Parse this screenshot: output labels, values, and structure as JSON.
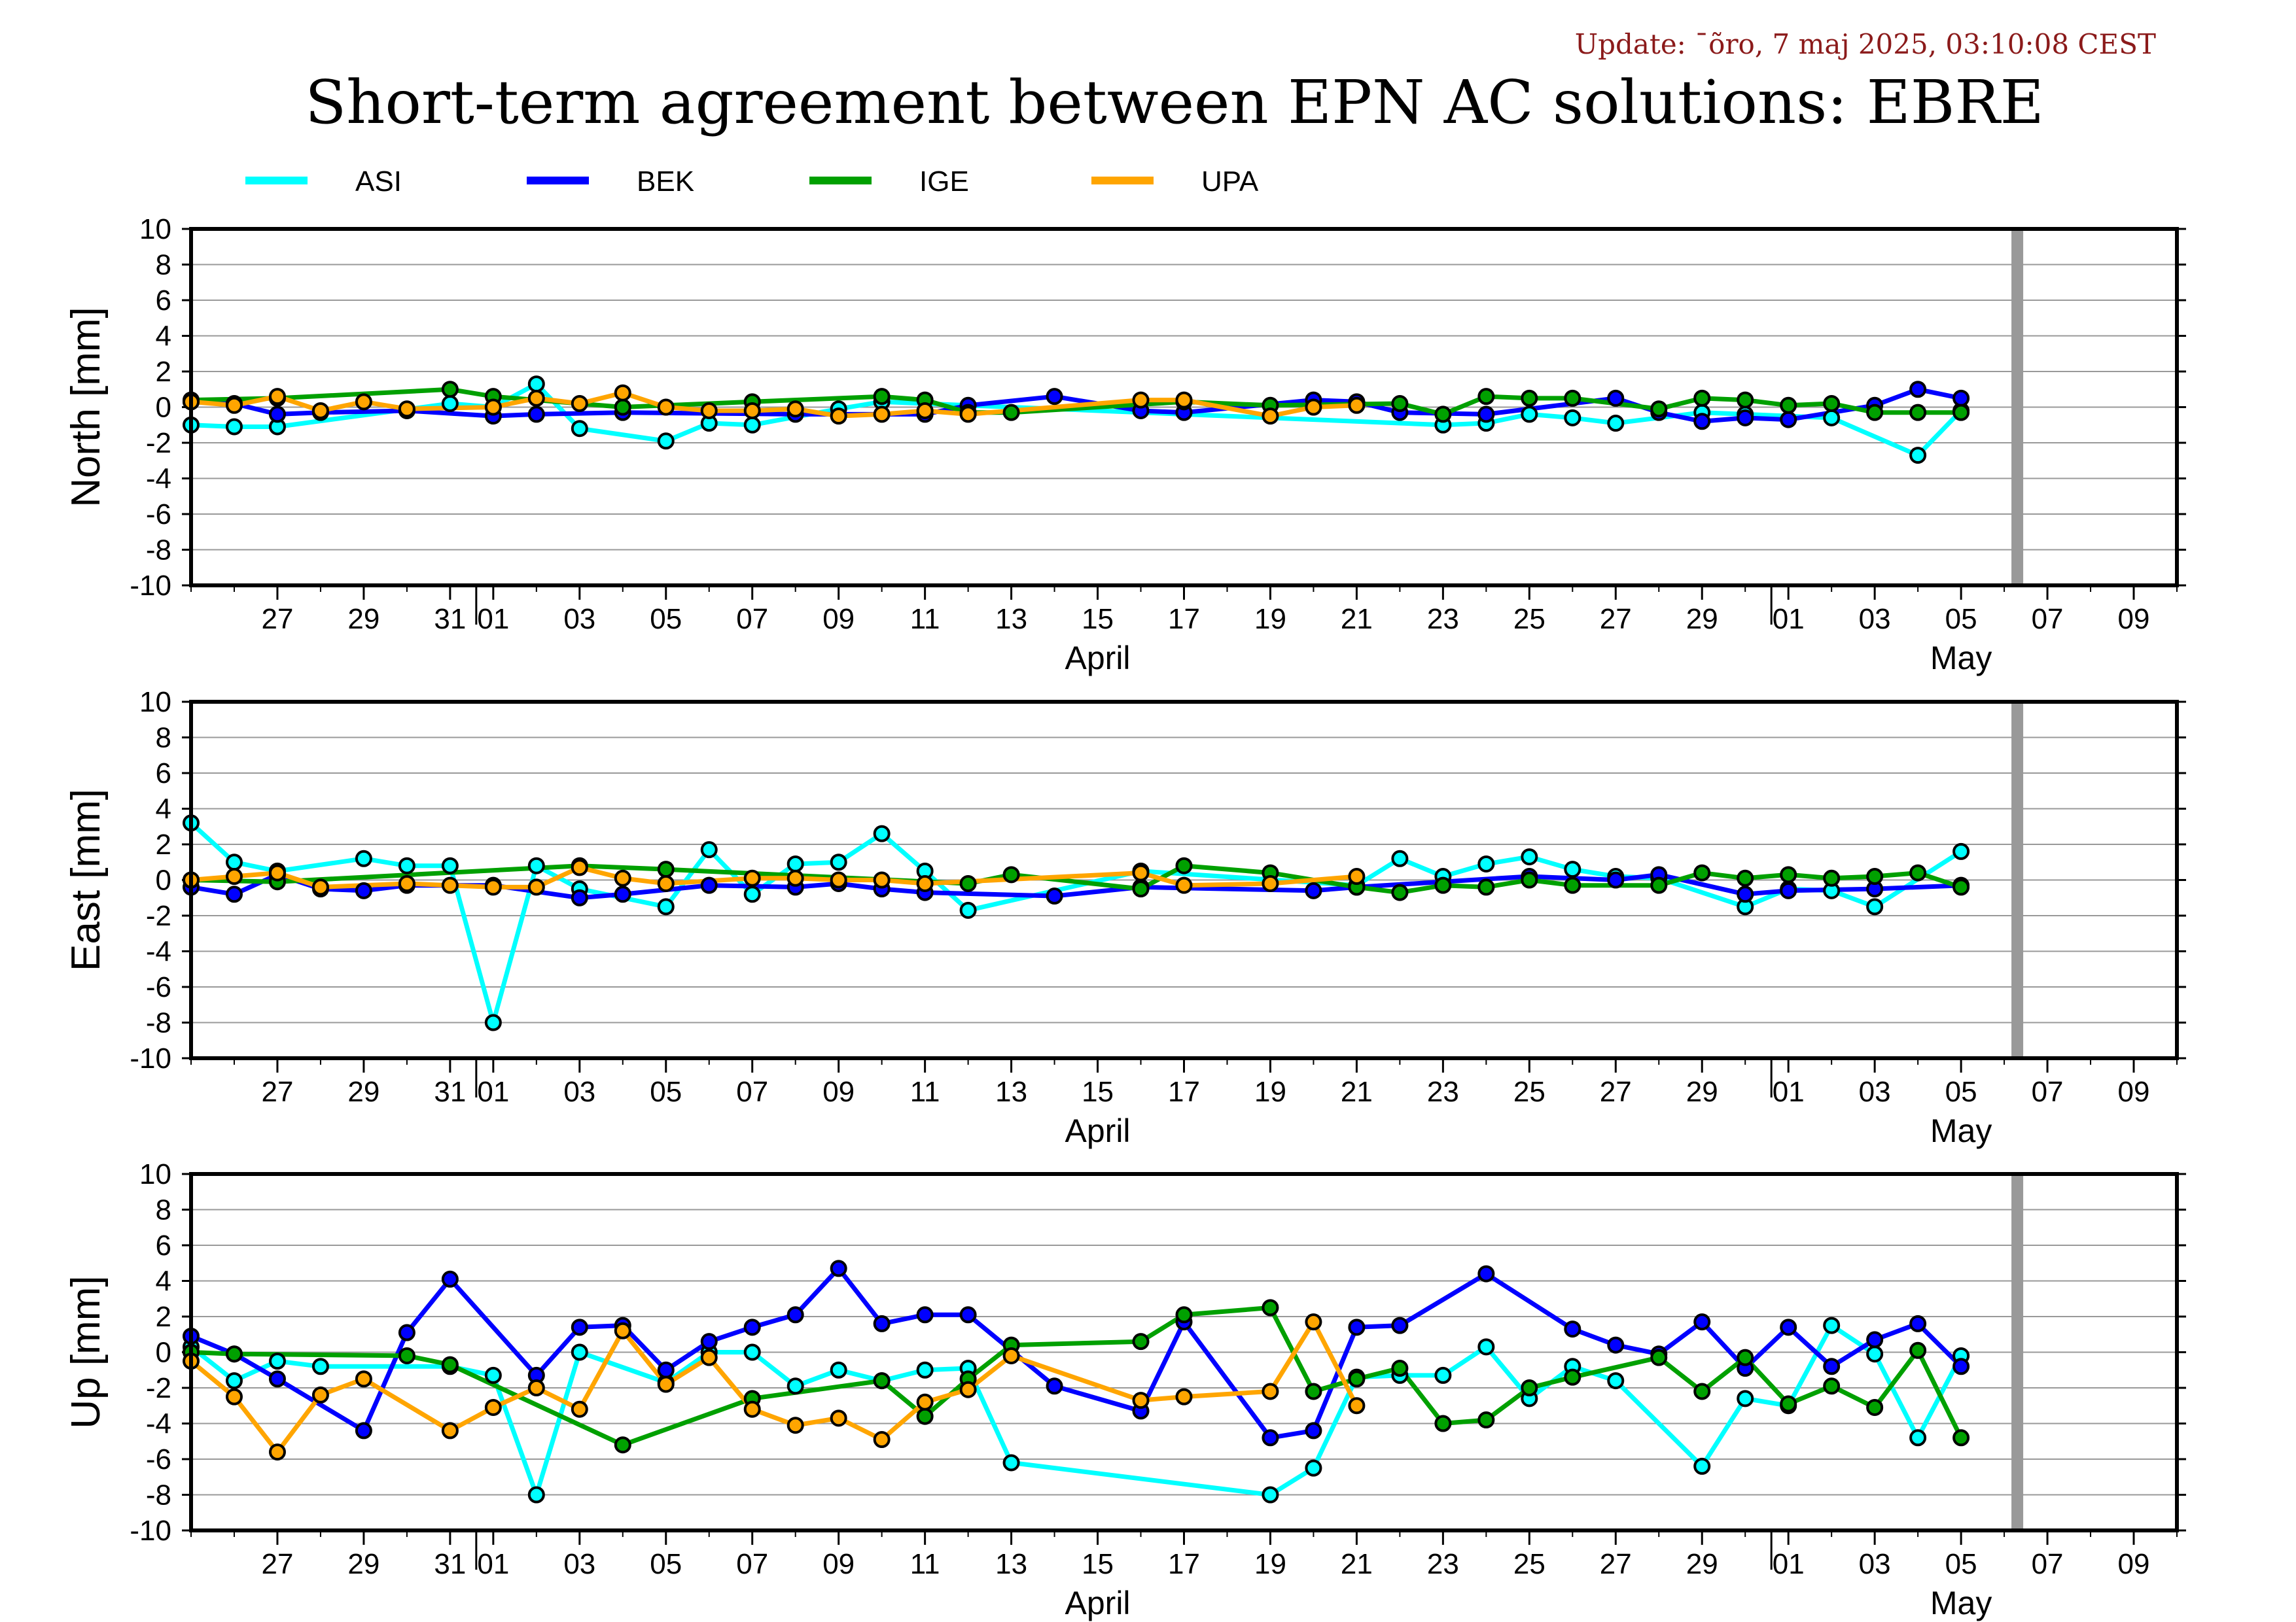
{
  "header": {
    "update": "Update: ˉõro, 7 maj 2025, 03:10:08 CEST",
    "title": "Short-term agreement between EPN AC solutions: EBRE"
  },
  "chart_data": {
    "type": "line",
    "legend": [
      {
        "name": "ASI",
        "color": "#00ffff"
      },
      {
        "name": "BEK",
        "color": "#0000ff"
      },
      {
        "name": "IGE",
        "color": "#00a000"
      },
      {
        "name": "UPA",
        "color": "#ffa500"
      }
    ],
    "x_range": [
      "2025-03-25",
      "2025-05-10"
    ],
    "x_ticks": [
      {
        "date": "2025-03-27",
        "label": "27"
      },
      {
        "date": "2025-03-29",
        "label": "29"
      },
      {
        "date": "2025-03-31",
        "label": "31"
      },
      {
        "date": "2025-04-01",
        "label": "01"
      },
      {
        "date": "2025-04-03",
        "label": "03"
      },
      {
        "date": "2025-04-05",
        "label": "05"
      },
      {
        "date": "2025-04-07",
        "label": "07"
      },
      {
        "date": "2025-04-09",
        "label": "09"
      },
      {
        "date": "2025-04-11",
        "label": "11"
      },
      {
        "date": "2025-04-13",
        "label": "13"
      },
      {
        "date": "2025-04-15",
        "label": "15"
      },
      {
        "date": "2025-04-17",
        "label": "17"
      },
      {
        "date": "2025-04-19",
        "label": "19"
      },
      {
        "date": "2025-04-21",
        "label": "21"
      },
      {
        "date": "2025-04-23",
        "label": "23"
      },
      {
        "date": "2025-04-25",
        "label": "25"
      },
      {
        "date": "2025-04-27",
        "label": "27"
      },
      {
        "date": "2025-04-29",
        "label": "29"
      },
      {
        "date": "2025-05-01",
        "label": "01"
      },
      {
        "date": "2025-05-03",
        "label": "03"
      },
      {
        "date": "2025-05-05",
        "label": "05"
      },
      {
        "date": "2025-05-07",
        "label": "07"
      },
      {
        "date": "2025-05-09",
        "label": "09"
      }
    ],
    "month_labels": [
      {
        "date": "2025-04-15",
        "label": "April"
      },
      {
        "date": "2025-05-05",
        "label": "May"
      }
    ],
    "month_boundaries": [
      "2025-04-01",
      "2025-05-01"
    ],
    "current_marker": "2025-05-06",
    "y_ticks": [
      10,
      8,
      6,
      4,
      2,
      0,
      -2,
      -4,
      -6,
      -8,
      -10
    ],
    "grid": true,
    "panels": [
      {
        "ylabel": "North [mm]",
        "ylim": [
          -10,
          10
        ],
        "series": [
          {
            "name": "ASI",
            "x": [
              "2025-03-25",
              "2025-03-26",
              "2025-03-27",
              "2025-03-31",
              "2025-04-01",
              "2025-04-02",
              "2025-04-03",
              "2025-04-05",
              "2025-04-06",
              "2025-04-07",
              "2025-04-09",
              "2025-04-10",
              "2025-04-23",
              "2025-04-24",
              "2025-04-25",
              "2025-04-26",
              "2025-04-27",
              "2025-04-29",
              "2025-04-30",
              "2025-05-02",
              "2025-05-04",
              "2025-05-05"
            ],
            "y": [
              -1.0,
              -1.1,
              -1.1,
              0.2,
              0.0,
              1.3,
              -1.2,
              -1.9,
              -0.9,
              -1.0,
              -0.1,
              0.3,
              -1.0,
              -0.9,
              -0.4,
              -0.6,
              -0.9,
              -0.3,
              -0.4,
              -0.6,
              -2.7,
              -0.2
            ]
          },
          {
            "name": "BEK",
            "x": [
              "2025-03-25",
              "2025-03-26",
              "2025-03-27",
              "2025-03-28",
              "2025-03-30",
              "2025-04-01",
              "2025-04-02",
              "2025-04-04",
              "2025-04-08",
              "2025-04-11",
              "2025-04-12",
              "2025-04-14",
              "2025-04-16",
              "2025-04-17",
              "2025-04-20",
              "2025-04-21",
              "2025-04-22",
              "2025-04-24",
              "2025-04-27",
              "2025-04-28",
              "2025-04-29",
              "2025-04-30",
              "2025-05-01",
              "2025-05-03",
              "2025-05-04",
              "2025-05-05"
            ],
            "y": [
              0.3,
              0.2,
              -0.4,
              -0.3,
              -0.2,
              -0.5,
              -0.4,
              -0.3,
              -0.4,
              -0.4,
              0.1,
              0.6,
              -0.2,
              -0.3,
              0.4,
              0.3,
              -0.3,
              -0.4,
              0.5,
              -0.3,
              -0.8,
              -0.6,
              -0.7,
              0.1,
              1.0,
              0.5
            ]
          },
          {
            "name": "IGE",
            "x": [
              "2025-03-25",
              "2025-03-27",
              "2025-03-31",
              "2025-04-01",
              "2025-04-04",
              "2025-04-07",
              "2025-04-10",
              "2025-04-11",
              "2025-04-12",
              "2025-04-13",
              "2025-04-17",
              "2025-04-19",
              "2025-04-22",
              "2025-04-23",
              "2025-04-24",
              "2025-04-25",
              "2025-04-26",
              "2025-04-28",
              "2025-04-29",
              "2025-04-30",
              "2025-05-01",
              "2025-05-02",
              "2025-05-03",
              "2025-05-04",
              "2025-05-05"
            ],
            "y": [
              0.4,
              0.5,
              1.0,
              0.6,
              0.0,
              0.3,
              0.6,
              0.4,
              -0.3,
              -0.3,
              0.3,
              0.1,
              0.2,
              -0.4,
              0.6,
              0.5,
              0.5,
              -0.1,
              0.5,
              0.4,
              0.1,
              0.2,
              -0.3,
              -0.3,
              -0.3
            ]
          },
          {
            "name": "UPA",
            "x": [
              "2025-03-25",
              "2025-03-26",
              "2025-03-27",
              "2025-03-28",
              "2025-03-29",
              "2025-03-30",
              "2025-04-01",
              "2025-04-02",
              "2025-04-03",
              "2025-04-04",
              "2025-04-05",
              "2025-04-06",
              "2025-04-07",
              "2025-04-08",
              "2025-04-09",
              "2025-04-10",
              "2025-04-11",
              "2025-04-12",
              "2025-04-16",
              "2025-04-17",
              "2025-04-19",
              "2025-04-20",
              "2025-04-21"
            ],
            "y": [
              0.3,
              0.1,
              0.6,
              -0.2,
              0.3,
              -0.1,
              0.0,
              0.5,
              0.2,
              0.8,
              0.0,
              -0.2,
              -0.2,
              -0.1,
              -0.5,
              -0.4,
              -0.2,
              -0.4,
              0.4,
              0.4,
              -0.5,
              0.0,
              0.1
            ]
          }
        ]
      },
      {
        "ylabel": "East [mm]",
        "ylim": [
          -10,
          10
        ],
        "series": [
          {
            "name": "ASI",
            "x": [
              "2025-03-25",
              "2025-03-26",
              "2025-03-27",
              "2025-03-29",
              "2025-03-30",
              "2025-03-31",
              "2025-04-01",
              "2025-04-02",
              "2025-04-03",
              "2025-04-05",
              "2025-04-06",
              "2025-04-07",
              "2025-04-08",
              "2025-04-09",
              "2025-04-10",
              "2025-04-11",
              "2025-04-12",
              "2025-04-16",
              "2025-04-21",
              "2025-04-22",
              "2025-04-23",
              "2025-04-24",
              "2025-04-25",
              "2025-04-26",
              "2025-04-27",
              "2025-04-28",
              "2025-04-30",
              "2025-05-01",
              "2025-05-02",
              "2025-05-03",
              "2025-05-05"
            ],
            "y": [
              3.2,
              1.0,
              0.5,
              1.2,
              0.8,
              0.8,
              -8.0,
              0.8,
              -0.5,
              -1.5,
              1.7,
              -0.8,
              0.9,
              1.0,
              2.6,
              0.5,
              -1.7,
              0.5,
              -0.3,
              1.2,
              0.2,
              0.9,
              1.3,
              0.6,
              0.2,
              0.1,
              -1.5,
              -0.5,
              -0.6,
              -1.5,
              1.6
            ]
          },
          {
            "name": "BEK",
            "x": [
              "2025-03-25",
              "2025-03-26",
              "2025-03-27",
              "2025-03-28",
              "2025-03-29",
              "2025-03-30",
              "2025-04-01",
              "2025-04-03",
              "2025-04-04",
              "2025-04-06",
              "2025-04-08",
              "2025-04-09",
              "2025-04-10",
              "2025-04-11",
              "2025-04-14",
              "2025-04-16",
              "2025-04-20",
              "2025-04-21",
              "2025-04-25",
              "2025-04-27",
              "2025-04-28",
              "2025-04-30",
              "2025-05-01",
              "2025-05-03",
              "2025-05-05"
            ],
            "y": [
              -0.4,
              -0.8,
              0.3,
              -0.5,
              -0.6,
              -0.3,
              -0.3,
              -1.0,
              -0.8,
              -0.3,
              -0.4,
              -0.2,
              -0.5,
              -0.7,
              -0.9,
              -0.4,
              -0.6,
              -0.4,
              0.2,
              0.0,
              0.3,
              -0.8,
              -0.6,
              -0.5,
              -0.3
            ]
          },
          {
            "name": "IGE",
            "x": [
              "2025-03-25",
              "2025-03-27",
              "2025-04-03",
              "2025-04-05",
              "2025-04-12",
              "2025-04-13",
              "2025-04-16",
              "2025-04-17",
              "2025-04-19",
              "2025-04-21",
              "2025-04-22",
              "2025-04-23",
              "2025-04-24",
              "2025-04-25",
              "2025-04-26",
              "2025-04-28",
              "2025-04-29",
              "2025-04-30",
              "2025-05-01",
              "2025-05-02",
              "2025-05-03",
              "2025-05-04",
              "2025-05-05"
            ],
            "y": [
              0.0,
              -0.1,
              0.8,
              0.6,
              -0.2,
              0.3,
              -0.5,
              0.8,
              0.4,
              -0.4,
              -0.7,
              -0.3,
              -0.4,
              0.0,
              -0.3,
              -0.3,
              0.4,
              0.1,
              0.3,
              0.1,
              0.2,
              0.4,
              -0.4
            ]
          },
          {
            "name": "UPA",
            "x": [
              "2025-03-25",
              "2025-03-26",
              "2025-03-27",
              "2025-03-28",
              "2025-03-30",
              "2025-03-31",
              "2025-04-01",
              "2025-04-02",
              "2025-04-03",
              "2025-04-04",
              "2025-04-05",
              "2025-04-07",
              "2025-04-08",
              "2025-04-09",
              "2025-04-10",
              "2025-04-11",
              "2025-04-16",
              "2025-04-17",
              "2025-04-19",
              "2025-04-21"
            ],
            "y": [
              0.0,
              0.2,
              0.4,
              -0.4,
              -0.2,
              -0.3,
              -0.4,
              -0.4,
              0.7,
              0.1,
              -0.2,
              0.1,
              0.1,
              0.0,
              0.0,
              -0.2,
              0.4,
              -0.3,
              -0.2,
              0.2
            ]
          }
        ]
      },
      {
        "ylabel": "Up [mm]",
        "ylim": [
          -10,
          10
        ],
        "series": [
          {
            "name": "ASI",
            "x": [
              "2025-03-25",
              "2025-03-26",
              "2025-03-27",
              "2025-03-28",
              "2025-03-31",
              "2025-04-01",
              "2025-04-02",
              "2025-04-03",
              "2025-04-05",
              "2025-04-06",
              "2025-04-07",
              "2025-04-08",
              "2025-04-09",
              "2025-04-10",
              "2025-04-11",
              "2025-04-12",
              "2025-04-13",
              "2025-04-19",
              "2025-04-20",
              "2025-04-21",
              "2025-04-22",
              "2025-04-23",
              "2025-04-24",
              "2025-04-25",
              "2025-04-26",
              "2025-04-27",
              "2025-04-29",
              "2025-04-30",
              "2025-05-01",
              "2025-05-02",
              "2025-05-03",
              "2025-05-04",
              "2025-05-05"
            ],
            "y": [
              0.3,
              -1.6,
              -0.5,
              -0.8,
              -0.8,
              -1.3,
              -8.0,
              0.0,
              -1.7,
              0.0,
              0.0,
              -1.9,
              -1.0,
              -1.6,
              -1.0,
              -0.9,
              -6.2,
              -8.0,
              -6.5,
              -1.4,
              -1.3,
              -1.3,
              0.3,
              -2.6,
              -0.8,
              -1.6,
              -6.4,
              -2.6,
              -3.0,
              1.5,
              -0.1,
              -4.8,
              -0.2
            ]
          },
          {
            "name": "BEK",
            "x": [
              "2025-03-25",
              "2025-03-26",
              "2025-03-27",
              "2025-03-29",
              "2025-03-30",
              "2025-03-31",
              "2025-04-02",
              "2025-04-03",
              "2025-04-04",
              "2025-04-05",
              "2025-04-06",
              "2025-04-07",
              "2025-04-08",
              "2025-04-09",
              "2025-04-10",
              "2025-04-11",
              "2025-04-12",
              "2025-04-14",
              "2025-04-16",
              "2025-04-17",
              "2025-04-19",
              "2025-04-20",
              "2025-04-21",
              "2025-04-22",
              "2025-04-24",
              "2025-04-26",
              "2025-04-27",
              "2025-04-28",
              "2025-04-29",
              "2025-04-30",
              "2025-05-01",
              "2025-05-02",
              "2025-05-03",
              "2025-05-04",
              "2025-05-05"
            ],
            "y": [
              0.9,
              -0.1,
              -1.5,
              -4.4,
              1.1,
              4.1,
              -1.3,
              1.4,
              1.5,
              -1.0,
              0.6,
              1.4,
              2.1,
              4.7,
              1.6,
              2.1,
              2.1,
              -1.9,
              -3.3,
              1.7,
              -4.8,
              -4.4,
              1.4,
              1.5,
              4.4,
              1.3,
              0.4,
              -0.1,
              1.7,
              -0.9,
              1.4,
              -0.8,
              0.7,
              1.6,
              -0.8
            ]
          },
          {
            "name": "IGE",
            "x": [
              "2025-03-25",
              "2025-03-26",
              "2025-03-30",
              "2025-03-31",
              "2025-04-04",
              "2025-04-07",
              "2025-04-10",
              "2025-04-11",
              "2025-04-12",
              "2025-04-13",
              "2025-04-16",
              "2025-04-17",
              "2025-04-19",
              "2025-04-20",
              "2025-04-21",
              "2025-04-22",
              "2025-04-23",
              "2025-04-24",
              "2025-04-25",
              "2025-04-26",
              "2025-04-28",
              "2025-04-29",
              "2025-04-30",
              "2025-05-01",
              "2025-05-02",
              "2025-05-03",
              "2025-05-04",
              "2025-05-05"
            ],
            "y": [
              0.0,
              -0.1,
              -0.2,
              -0.7,
              -5.2,
              -2.6,
              -1.6,
              -3.6,
              -1.5,
              0.4,
              0.6,
              2.1,
              2.5,
              -2.2,
              -1.5,
              -0.9,
              -4.0,
              -3.8,
              -2.0,
              -1.4,
              -0.3,
              -2.2,
              -0.3,
              -2.9,
              -1.9,
              -3.1,
              0.1,
              -4.8
            ]
          },
          {
            "name": "UPA",
            "x": [
              "2025-03-25",
              "2025-03-26",
              "2025-03-27",
              "2025-03-28",
              "2025-03-29",
              "2025-03-31",
              "2025-04-01",
              "2025-04-02",
              "2025-04-03",
              "2025-04-04",
              "2025-04-05",
              "2025-04-06",
              "2025-04-07",
              "2025-04-08",
              "2025-04-09",
              "2025-04-10",
              "2025-04-11",
              "2025-04-12",
              "2025-04-13",
              "2025-04-16",
              "2025-04-17",
              "2025-04-19",
              "2025-04-20",
              "2025-04-21"
            ],
            "y": [
              -0.5,
              -2.5,
              -5.6,
              -2.4,
              -1.5,
              -4.4,
              -3.1,
              -2.0,
              -3.2,
              1.2,
              -1.8,
              -0.3,
              -3.2,
              -4.1,
              -3.7,
              -4.9,
              -2.8,
              -2.1,
              -0.2,
              -2.7,
              -2.5,
              -2.2,
              1.7,
              -3.0
            ]
          }
        ]
      }
    ]
  }
}
